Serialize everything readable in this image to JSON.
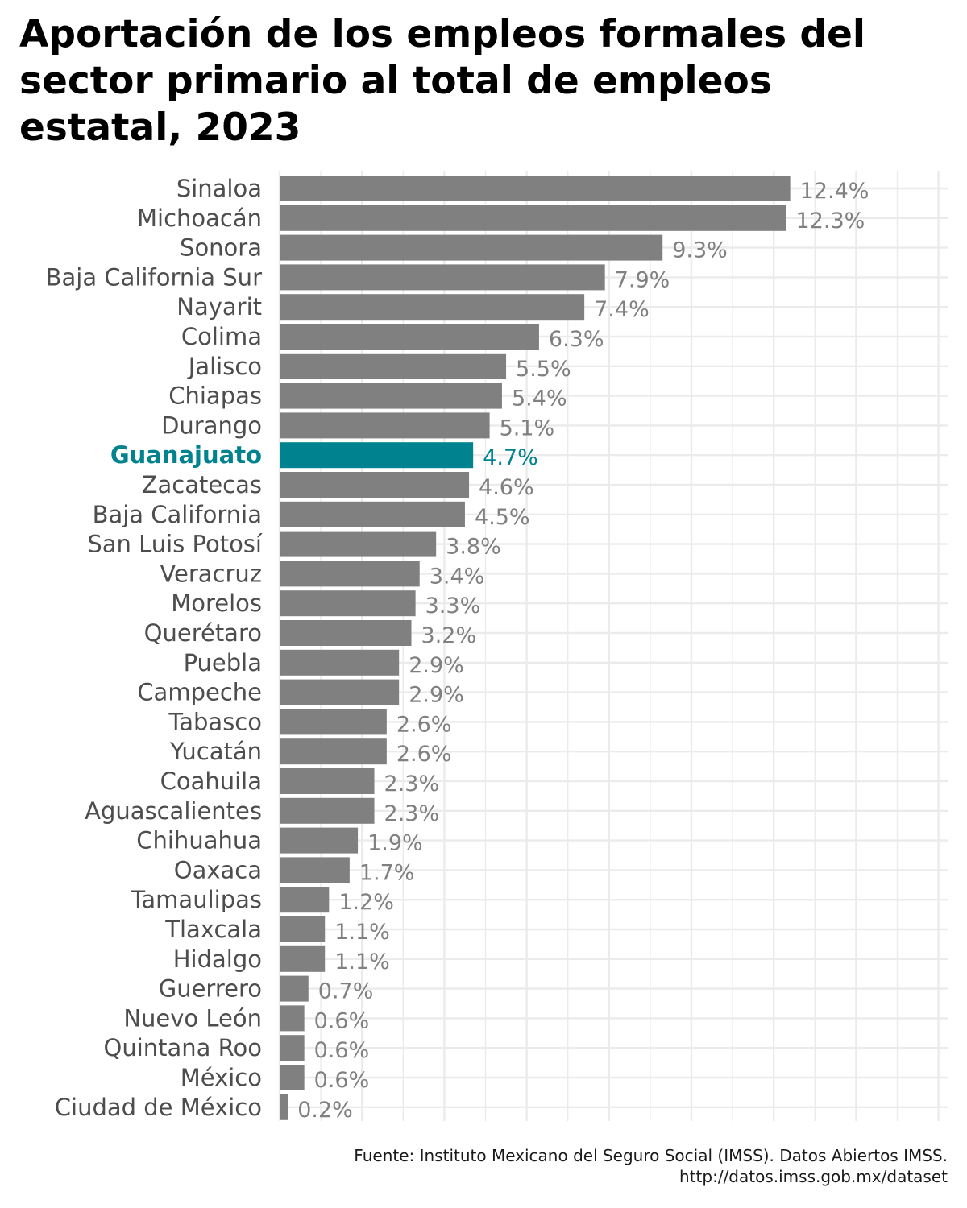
{
  "chart_data": {
    "type": "bar",
    "orientation": "horizontal",
    "title": "Aportación de los empleos formales del sector primario al total de empleos estatal, 2023",
    "source": "Fuente: Instituto Mexicano del Seguro Social (IMSS). Datos Abiertos IMSS. http://datos.imss.gob.mx/dataset",
    "categories": [
      "Sinaloa",
      "Michoacán",
      "Sonora",
      "Baja California Sur",
      "Nayarit",
      "Colima",
      "Jalisco",
      "Chiapas",
      "Durango",
      "Guanajuato",
      "Zacatecas",
      "Baja California",
      "San Luis Potosí",
      "Veracruz",
      "Morelos",
      "Querétaro",
      "Puebla",
      "Campeche",
      "Tabasco",
      "Yucatán",
      "Coahuila",
      "Aguascalientes",
      "Chihuahua",
      "Oaxaca",
      "Tamaulipas",
      "Tlaxcala",
      "Hidalgo",
      "Guerrero",
      "Nuevo León",
      "Quintana Roo",
      "México",
      "Ciudad de México"
    ],
    "values": [
      12.4,
      12.3,
      9.3,
      7.9,
      7.4,
      6.3,
      5.5,
      5.4,
      5.1,
      4.7,
      4.6,
      4.5,
      3.8,
      3.4,
      3.3,
      3.2,
      2.9,
      2.9,
      2.6,
      2.6,
      2.3,
      2.3,
      1.9,
      1.7,
      1.2,
      1.1,
      1.1,
      0.7,
      0.6,
      0.6,
      0.6,
      0.2
    ],
    "value_labels": [
      "12.4%",
      "12.3%",
      "9.3%",
      "7.9%",
      "7.4%",
      "6.3%",
      "5.5%",
      "5.4%",
      "5.1%",
      "4.7%",
      "4.6%",
      "4.5%",
      "3.8%",
      "3.4%",
      "3.3%",
      "3.2%",
      "2.9%",
      "2.9%",
      "2.6%",
      "2.6%",
      "2.3%",
      "2.3%",
      "1.9%",
      "1.7%",
      "1.2%",
      "1.1%",
      "1.1%",
      "0.7%",
      "0.6%",
      "0.6%",
      "0.6%",
      "0.2%"
    ],
    "highlight": "Guanajuato",
    "xlim": [
      0,
      16
    ],
    "grid": true,
    "colors": {
      "bar": "#808080",
      "highlight": "#00838f",
      "grid": "#ebebeb"
    }
  }
}
